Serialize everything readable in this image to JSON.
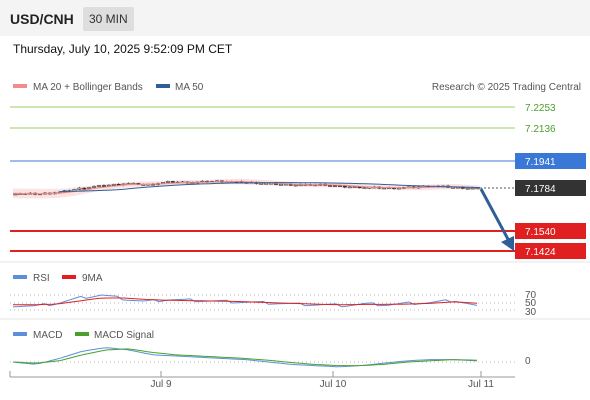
{
  "header": {
    "pair": "USD/CNH",
    "interval": "30 MIN"
  },
  "datetime": "Thursday, July 10, 2025 9:52:09 PM CET",
  "credit": "Research © 2025 Trading Central",
  "legend": {
    "ma20": "MA 20 + Bollinger Bands",
    "ma50": "MA 50",
    "rsi": "RSI",
    "rsi_ma": "9MA",
    "macd": "MACD",
    "macd_signal": "MACD Signal"
  },
  "colors": {
    "ma20": "#f28b8b",
    "ma50": "#2f5f98",
    "rsi": "#5b8fd9",
    "rsi_ma": "#e02020",
    "macd": "#5b8fd9",
    "macd_signal": "#4aa02c",
    "resistance": "#9ccc65",
    "pivot": "#3a78d8",
    "support": "#e02020",
    "arrow": "#2f5f98"
  },
  "chart_data": [
    {
      "type": "candlestick",
      "title": "USD/CNH",
      "x_ticks": [
        "Jul 9",
        "Jul 10",
        "Jul 11"
      ],
      "ylim": [
        7.138,
        7.232
      ],
      "levels": [
        {
          "value": 7.2253,
          "label": "7.2253",
          "kind": "resistance"
        },
        {
          "value": 7.2136,
          "label": "7.2136",
          "kind": "resistance"
        },
        {
          "value": 7.1941,
          "label": "7.1941",
          "kind": "pivot"
        },
        {
          "value": 7.1784,
          "label": "7.1784",
          "kind": "current"
        },
        {
          "value": 7.154,
          "label": "7.1540",
          "kind": "support"
        },
        {
          "value": 7.1424,
          "label": "7.1424",
          "kind": "support"
        }
      ],
      "close_anchors": [
        7.1756,
        7.1752,
        7.1762,
        7.1786,
        7.18,
        7.1812,
        7.1806,
        7.1822,
        7.1818,
        7.1826,
        7.1822,
        7.1816,
        7.1808,
        7.1804,
        7.1806,
        7.1794,
        7.179,
        7.1786,
        7.179,
        7.1798,
        7.179,
        7.1784
      ],
      "ma50_anchors": [
        7.1766,
        7.177,
        7.1776,
        7.179,
        7.1802,
        7.181,
        7.1815,
        7.1817,
        7.1818,
        7.1817,
        7.1815,
        7.1811,
        7.1804,
        7.1798,
        7.1793,
        7.1789
      ]
    },
    {
      "type": "line",
      "title": "RSI",
      "yticks": [
        70,
        50,
        30
      ],
      "ylim": [
        20,
        80
      ],
      "series": [
        {
          "name": "RSI",
          "anchors": [
            42,
            40,
            48,
            62,
            70,
            60,
            52,
            58,
            56,
            54,
            52,
            50,
            48,
            45,
            44,
            42,
            46,
            44,
            48,
            50,
            56,
            40
          ]
        },
        {
          "name": "9MA",
          "anchors": [
            44,
            44,
            46,
            54,
            62,
            62,
            58,
            56,
            55,
            54,
            53,
            51,
            49,
            47,
            45,
            44,
            45,
            45,
            46,
            48,
            52,
            48
          ]
        }
      ]
    },
    {
      "type": "line",
      "title": "MACD",
      "yticks": [
        0
      ],
      "ylim": [
        -0.0012,
        0.003
      ],
      "series": [
        {
          "name": "MACD",
          "anchors": [
            0.0,
            -0.0004,
            0.0006,
            0.0018,
            0.0024,
            0.002,
            0.0012,
            0.001,
            0.0008,
            0.0006,
            0.0004,
            0.0,
            -0.0004,
            -0.0006,
            -0.0008,
            -0.0006,
            -0.0002,
            0.0002,
            0.0004,
            0.0004,
            0.0002
          ]
        },
        {
          "name": "MACD Signal",
          "anchors": [
            0.0,
            -0.0002,
            0.0002,
            0.0012,
            0.002,
            0.0022,
            0.0016,
            0.0012,
            0.001,
            0.0008,
            0.0006,
            0.0003,
            -0.0001,
            -0.0004,
            -0.0006,
            -0.0006,
            -0.0004,
            0.0,
            0.0002,
            0.0004,
            0.0003
          ]
        }
      ]
    }
  ]
}
